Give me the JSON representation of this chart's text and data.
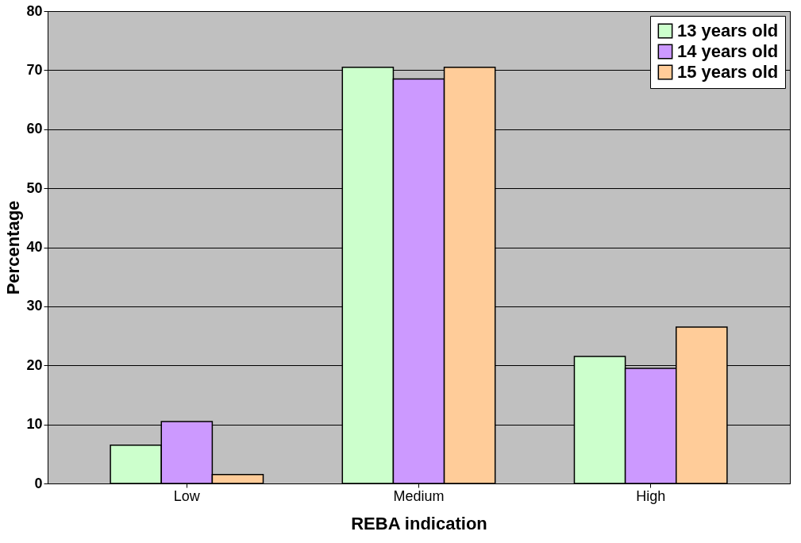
{
  "chart_data": {
    "type": "bar",
    "xlabel": "REBA indication",
    "ylabel": "Percentage",
    "categories": [
      "Low",
      "Medium",
      "High"
    ],
    "series": [
      {
        "name": "13 years old",
        "color": "#ccffcc",
        "values": [
          6.5,
          70.5,
          21.5
        ]
      },
      {
        "name": "14 years old",
        "color": "#cc99ff",
        "values": [
          10.5,
          68.5,
          19.5
        ]
      },
      {
        "name": "15 years old",
        "color": "#ffcc99",
        "values": [
          1.5,
          70.5,
          26.5
        ]
      }
    ],
    "ylim": [
      0,
      80
    ],
    "yticks": [
      0,
      10,
      20,
      30,
      40,
      50,
      60,
      70,
      80
    ],
    "grid": "y",
    "legend": "top right"
  }
}
